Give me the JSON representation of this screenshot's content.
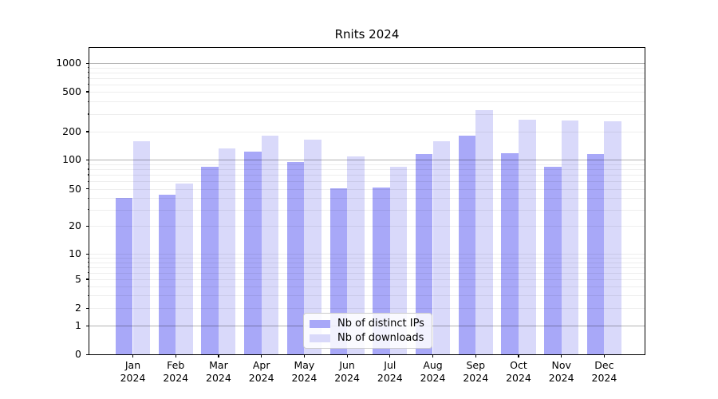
{
  "chart_data": {
    "type": "bar",
    "title": "Rnits 2024",
    "categories": [
      "Jan 2024",
      "Feb 2024",
      "Mar 2024",
      "Apr 2024",
      "May 2024",
      "Jun 2024",
      "Jul 2024",
      "Aug 2024",
      "Sep 2024",
      "Oct 2024",
      "Nov 2024",
      "Dec 2024"
    ],
    "series": [
      {
        "name": "Nb of distinct IPs",
        "color": "#a8a8f8",
        "values": [
          40,
          43,
          85,
          123,
          95,
          51,
          52,
          114,
          182,
          118,
          85,
          115
        ]
      },
      {
        "name": "Nb of downloads",
        "color": "#d9d9fa",
        "values": [
          158,
          57,
          131,
          182,
          164,
          109,
          84,
          158,
          330,
          264,
          258,
          255
        ]
      }
    ],
    "xlabel": "",
    "ylabel": "",
    "y_scale": "symlog",
    "y_ticks": [
      0,
      1,
      2,
      5,
      10,
      20,
      50,
      100,
      200,
      500,
      1000
    ],
    "ylim": [
      0,
      1450
    ],
    "grid": true,
    "major_grid_values": [
      1,
      100,
      1000
    ],
    "legend_position": "lower center",
    "background": "#ffffff"
  }
}
